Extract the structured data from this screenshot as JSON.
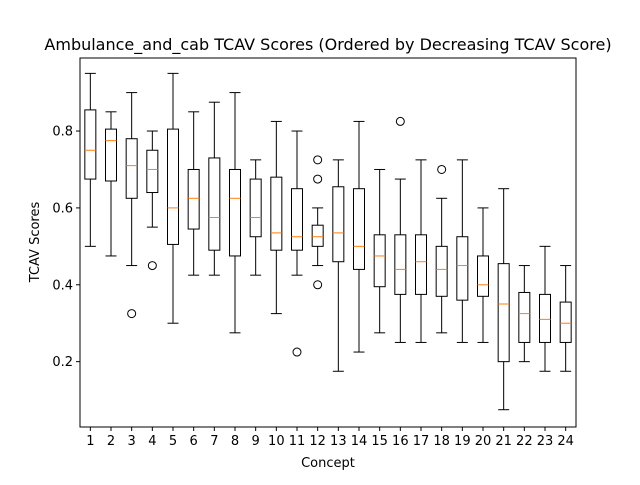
{
  "chart_data": {
    "type": "boxplot",
    "title": "Ambulance_and_cab TCAV Scores (Ordered by Decreasing TCAV Score)",
    "xlabel": "Concept",
    "ylabel": "TCAV Scores",
    "ylim": [
      0.03,
      0.99
    ],
    "yticks": [
      0.2,
      0.4,
      0.6,
      0.8
    ],
    "grid": false,
    "colors": {
      "box": "#000000",
      "median": "#ff7f0e",
      "flier": "#000000"
    },
    "categories": [
      "1",
      "2",
      "3",
      "4",
      "5",
      "6",
      "7",
      "8",
      "9",
      "10",
      "11",
      "12",
      "13",
      "14",
      "15",
      "16",
      "17",
      "18",
      "19",
      "20",
      "21",
      "22",
      "23",
      "24"
    ],
    "boxes": [
      {
        "whisker_low": 0.5,
        "q1": 0.675,
        "median": 0.75,
        "q3": 0.855,
        "whisker_high": 0.95,
        "fliers": []
      },
      {
        "whisker_low": 0.475,
        "q1": 0.67,
        "median": 0.775,
        "q3": 0.805,
        "whisker_high": 0.85,
        "fliers": []
      },
      {
        "whisker_low": 0.45,
        "q1": 0.625,
        "median": 0.71,
        "q3": 0.78,
        "whisker_high": 0.9,
        "fliers": [
          0.325
        ]
      },
      {
        "whisker_low": 0.55,
        "q1": 0.64,
        "median": 0.7,
        "q3": 0.75,
        "whisker_high": 0.8,
        "fliers": [
          0.45
        ]
      },
      {
        "whisker_low": 0.3,
        "q1": 0.505,
        "median": 0.6,
        "q3": 0.805,
        "whisker_high": 0.95,
        "fliers": []
      },
      {
        "whisker_low": 0.425,
        "q1": 0.545,
        "median": 0.625,
        "q3": 0.7,
        "whisker_high": 0.85,
        "fliers": []
      },
      {
        "whisker_low": 0.425,
        "q1": 0.49,
        "median": 0.575,
        "q3": 0.73,
        "whisker_high": 0.875,
        "fliers": []
      },
      {
        "whisker_low": 0.275,
        "q1": 0.475,
        "median": 0.625,
        "q3": 0.7,
        "whisker_high": 0.9,
        "fliers": []
      },
      {
        "whisker_low": 0.425,
        "q1": 0.525,
        "median": 0.575,
        "q3": 0.675,
        "whisker_high": 0.725,
        "fliers": []
      },
      {
        "whisker_low": 0.325,
        "q1": 0.49,
        "median": 0.535,
        "q3": 0.68,
        "whisker_high": 0.825,
        "fliers": []
      },
      {
        "whisker_low": 0.425,
        "q1": 0.49,
        "median": 0.525,
        "q3": 0.65,
        "whisker_high": 0.8,
        "fliers": [
          0.225
        ]
      },
      {
        "whisker_low": 0.45,
        "q1": 0.5,
        "median": 0.525,
        "q3": 0.555,
        "whisker_high": 0.6,
        "fliers": [
          0.725,
          0.675,
          0.4
        ]
      },
      {
        "whisker_low": 0.175,
        "q1": 0.46,
        "median": 0.535,
        "q3": 0.655,
        "whisker_high": 0.725,
        "fliers": []
      },
      {
        "whisker_low": 0.225,
        "q1": 0.44,
        "median": 0.5,
        "q3": 0.65,
        "whisker_high": 0.825,
        "fliers": []
      },
      {
        "whisker_low": 0.275,
        "q1": 0.395,
        "median": 0.475,
        "q3": 0.53,
        "whisker_high": 0.7,
        "fliers": []
      },
      {
        "whisker_low": 0.25,
        "q1": 0.375,
        "median": 0.44,
        "q3": 0.53,
        "whisker_high": 0.675,
        "fliers": [
          0.825
        ]
      },
      {
        "whisker_low": 0.25,
        "q1": 0.375,
        "median": 0.46,
        "q3": 0.53,
        "whisker_high": 0.725,
        "fliers": []
      },
      {
        "whisker_low": 0.275,
        "q1": 0.37,
        "median": 0.44,
        "q3": 0.5,
        "whisker_high": 0.625,
        "fliers": [
          0.7
        ]
      },
      {
        "whisker_low": 0.25,
        "q1": 0.36,
        "median": 0.45,
        "q3": 0.525,
        "whisker_high": 0.725,
        "fliers": []
      },
      {
        "whisker_low": 0.25,
        "q1": 0.37,
        "median": 0.4,
        "q3": 0.475,
        "whisker_high": 0.6,
        "fliers": []
      },
      {
        "whisker_low": 0.075,
        "q1": 0.2,
        "median": 0.35,
        "q3": 0.455,
        "whisker_high": 0.65,
        "fliers": []
      },
      {
        "whisker_low": 0.2,
        "q1": 0.25,
        "median": 0.325,
        "q3": 0.38,
        "whisker_high": 0.45,
        "fliers": []
      },
      {
        "whisker_low": 0.175,
        "q1": 0.25,
        "median": 0.31,
        "q3": 0.375,
        "whisker_high": 0.5,
        "fliers": []
      },
      {
        "whisker_low": 0.175,
        "q1": 0.25,
        "median": 0.3,
        "q3": 0.355,
        "whisker_high": 0.45,
        "fliers": []
      }
    ]
  }
}
